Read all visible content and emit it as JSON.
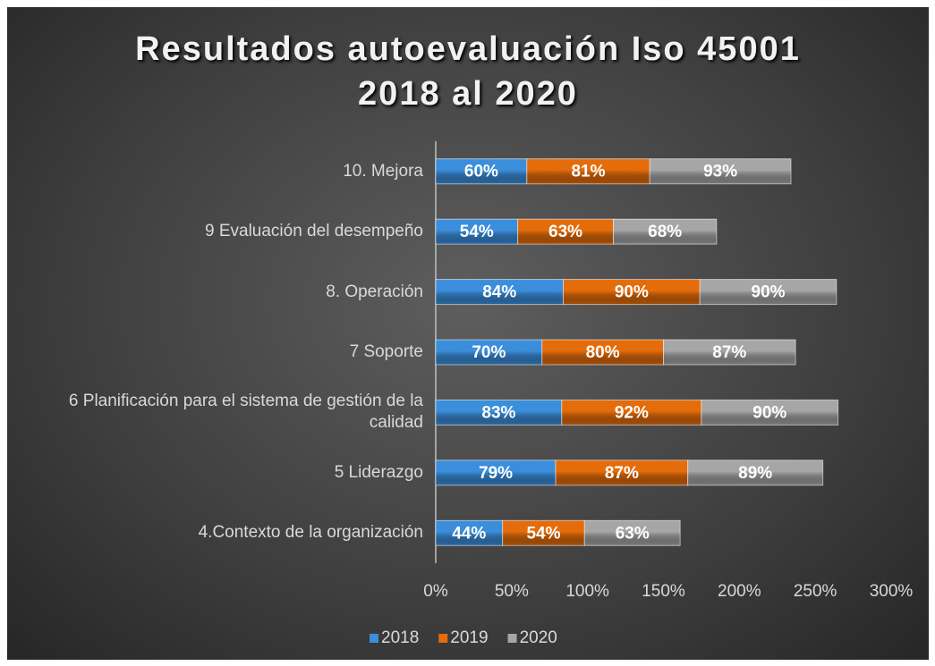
{
  "chart_data": {
    "type": "stacked_bar_horizontal",
    "title": "Resultados autoevaluación Iso 45001  2018 al 2020",
    "categories": [
      "10. Mejora",
      "9 Evaluación del desempeño",
      "8. Operación",
      "7 Soporte",
      "6 Planificación para el sistema de gestión de la calidad",
      "5 Liderazgo",
      "4.Contexto de la organización"
    ],
    "series": [
      {
        "name": "2018",
        "color": "#3b8edb",
        "values": [
          60,
          54,
          84,
          70,
          83,
          79,
          44
        ],
        "value_labels": [
          "60%",
          "54%",
          "84%",
          "70%",
          "83%",
          "79%",
          "44%"
        ]
      },
      {
        "name": "2019",
        "color": "#e46c0a",
        "values": [
          81,
          63,
          90,
          80,
          92,
          87,
          54
        ],
        "value_labels": [
          "81%",
          "63%",
          "90%",
          "80%",
          "92%",
          "87%",
          "54%"
        ]
      },
      {
        "name": "2020",
        "color": "#a6a6a6",
        "values": [
          93,
          68,
          90,
          87,
          90,
          89,
          63
        ],
        "value_labels": [
          "93%",
          "68%",
          "90%",
          "87%",
          "90%",
          "89%",
          "63%"
        ]
      }
    ],
    "xlim": [
      0,
      300
    ],
    "xticks": [
      {
        "value": 0,
        "label": "0%"
      },
      {
        "value": 50,
        "label": "50%"
      },
      {
        "value": 100,
        "label": "100%"
      },
      {
        "value": 150,
        "label": "150%"
      },
      {
        "value": 200,
        "label": "200%"
      },
      {
        "value": 250,
        "label": "250%"
      },
      {
        "value": 300,
        "label": "300%"
      }
    ],
    "legend": "bottom"
  }
}
